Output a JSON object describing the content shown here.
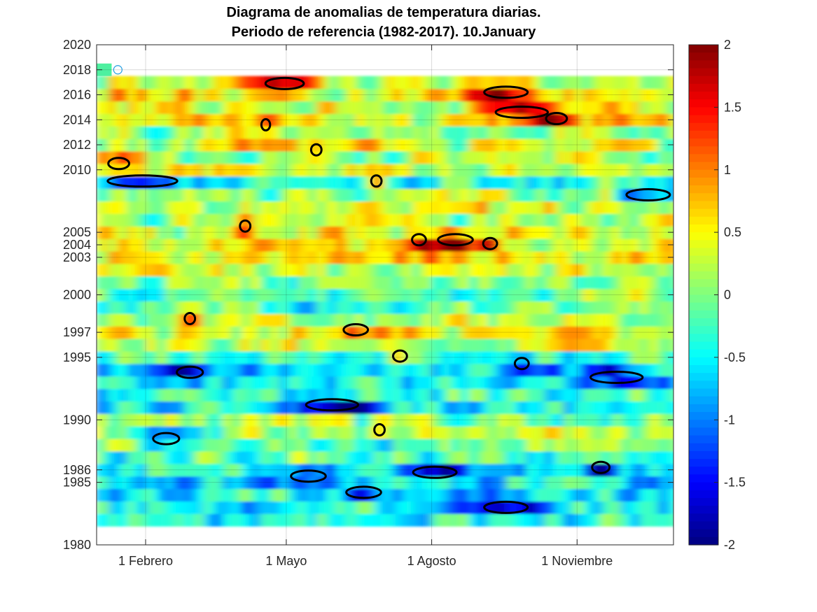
{
  "chart_data": {
    "type": "heatmap",
    "title_line1": "Diagrama de anomalias de temperatura diarias.",
    "title_line2": "Periodo de referencia (1982-2017). 10.January",
    "x_ticks": [
      {
        "day": 32,
        "label": "1 Febrero"
      },
      {
        "day": 121,
        "label": "1 Mayo"
      },
      {
        "day": 213,
        "label": "1 Agosto"
      },
      {
        "day": 305,
        "label": "1 Noviembre"
      }
    ],
    "xlim": [
      1,
      366
    ],
    "y_ticks": [
      1980,
      1985,
      1986,
      1990,
      1995,
      1997,
      2000,
      2003,
      2004,
      2005,
      2010,
      2012,
      2014,
      2016,
      2018,
      2020
    ],
    "ylim": [
      1980,
      2020
    ],
    "data_years": [
      1982,
      2017
    ],
    "marker": {
      "year": 2018,
      "day": 10
    },
    "colorbar": {
      "min": -2,
      "max": 2,
      "ticks": [
        -2,
        -1.5,
        -1,
        -0.5,
        0,
        0.5,
        1,
        1.5,
        2
      ],
      "tick_labels": [
        "-2",
        "-1.5",
        "-1",
        "-0.5",
        "0",
        "0.5",
        "1",
        "1.5",
        "2"
      ],
      "colormap": "jet"
    },
    "contour_threshold": 1.0,
    "grid": true,
    "row_bias": {
      "1982": -0.4,
      "1983": -0.5,
      "1984": -0.5,
      "1985": -0.6,
      "1986": -0.4,
      "1987": -0.3,
      "1988": -0.1,
      "1989": 0.1,
      "1990": 0.0,
      "1991": -0.5,
      "1992": -0.3,
      "1993": -0.6,
      "1994": -0.7,
      "1995": -0.4,
      "1996": 0.2,
      "1997": 0.4,
      "1998": 0.0,
      "1999": -0.2,
      "2000": 0.0,
      "2001": 0.1,
      "2002": 0.3,
      "2003": 0.5,
      "2004": 0.4,
      "2005": 0.3,
      "2006": 0.2,
      "2007": 0.3,
      "2008": 0.1,
      "2009": -0.3,
      "2010": 0.4,
      "2011": 0.2,
      "2012": 0.3,
      "2013": 0.2,
      "2014": 0.5,
      "2015": 0.2,
      "2016": 0.4,
      "2017": 0.3
    },
    "hot_spots": [
      {
        "year": 2016.2,
        "day": 260,
        "width": 25,
        "value": 1.7
      },
      {
        "year": 2014.6,
        "day": 270,
        "width": 30,
        "value": 1.8
      },
      {
        "year": 2014.1,
        "day": 292,
        "width": 12,
        "value": 1.5
      },
      {
        "year": 2004.4,
        "day": 228,
        "width": 20,
        "value": 2.0
      },
      {
        "year": 2004.4,
        "day": 205,
        "width": 8,
        "value": 1.4
      },
      {
        "year": 2004.1,
        "day": 250,
        "width": 8,
        "value": 1.3
      },
      {
        "year": 2016.9,
        "day": 120,
        "width": 22,
        "value": 1.6
      },
      {
        "year": 2010.5,
        "day": 15,
        "width": 12,
        "value": 1.4
      },
      {
        "year": 2011.6,
        "day": 140,
        "width": 6,
        "value": 1.3
      },
      {
        "year": 2009.1,
        "day": 178,
        "width": 6,
        "value": 1.3
      },
      {
        "year": 2005.5,
        "day": 95,
        "width": 6,
        "value": 1.2
      },
      {
        "year": 1997.2,
        "day": 165,
        "width": 14,
        "value": 1.4
      },
      {
        "year": 1995.1,
        "day": 193,
        "width": 8,
        "value": 1.3
      },
      {
        "year": 1998.1,
        "day": 60,
        "width": 6,
        "value": 1.2
      },
      {
        "year": 1989.2,
        "day": 180,
        "width": 6,
        "value": 1.2
      },
      {
        "year": 2013.6,
        "day": 108,
        "width": 5,
        "value": 1.2
      }
    ],
    "cold_spots": [
      {
        "year": 1991.2,
        "day": 150,
        "width": 30,
        "value": -1.6
      },
      {
        "year": 1993.4,
        "day": 330,
        "width": 30,
        "value": -1.5
      },
      {
        "year": 1994.5,
        "day": 270,
        "width": 8,
        "value": -1.5
      },
      {
        "year": 1993.8,
        "day": 60,
        "width": 15,
        "value": -1.3
      },
      {
        "year": 1985.5,
        "day": 135,
        "width": 20,
        "value": -1.4
      },
      {
        "year": 1984.2,
        "day": 170,
        "width": 20,
        "value": -1.3
      },
      {
        "year": 1985.8,
        "day": 215,
        "width": 25,
        "value": -1.4
      },
      {
        "year": 1986.2,
        "day": 320,
        "width": 10,
        "value": -1.3
      },
      {
        "year": 1983.0,
        "day": 260,
        "width": 25,
        "value": -1.2
      },
      {
        "year": 1988.5,
        "day": 45,
        "width": 15,
        "value": -1.2
      },
      {
        "year": 2009.1,
        "day": 30,
        "width": 40,
        "value": -0.9
      },
      {
        "year": 2008.0,
        "day": 350,
        "width": 25,
        "value": -0.9
      }
    ]
  }
}
